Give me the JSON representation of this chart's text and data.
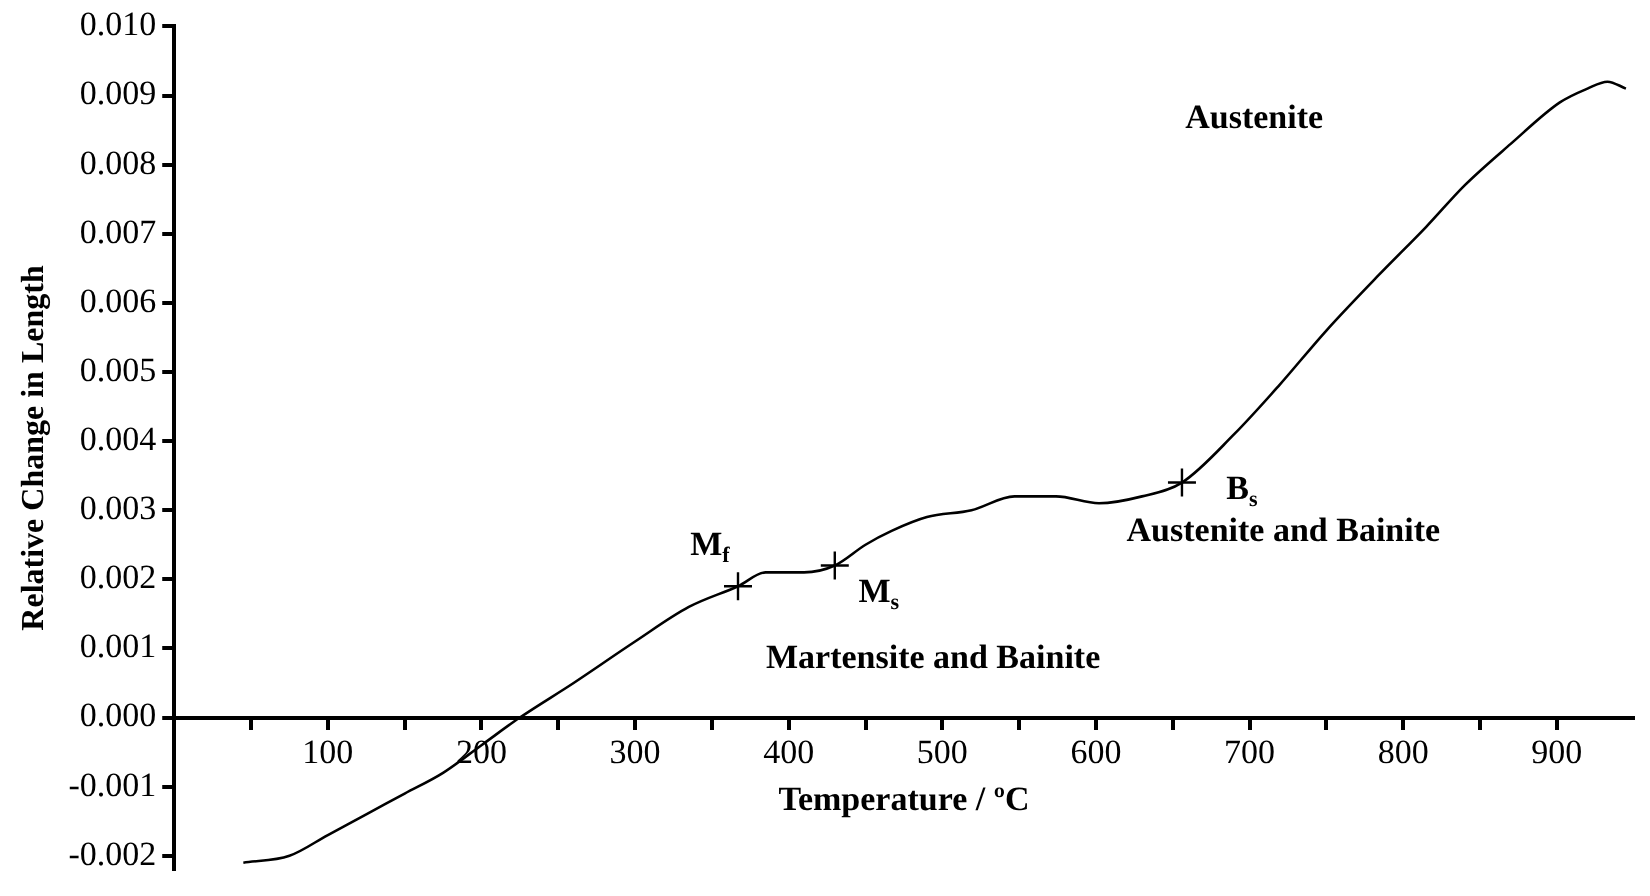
{
  "chart_data": {
    "type": "line",
    "xlabel": "Temperature / ºC",
    "ylabel": "Relative Change in Length",
    "xlim": [
      0,
      950
    ],
    "ylim": [
      -0.0022,
      0.01
    ],
    "xticks": [
      {
        "value": 50,
        "label": null
      },
      100,
      {
        "value": 150,
        "label": null
      },
      200,
      {
        "value": 250,
        "label": null
      },
      300,
      {
        "value": 350,
        "label": null
      },
      400,
      {
        "value": 450,
        "label": null
      },
      500,
      {
        "value": 550,
        "label": null
      },
      600,
      {
        "value": 650,
        "label": null
      },
      700,
      {
        "value": 750,
        "label": null
      },
      800,
      {
        "value": 850,
        "label": null
      },
      900
    ],
    "yticks": [
      {
        "value": -0.002,
        "label": "-0.002"
      },
      {
        "value": -0.001,
        "label": "-0.001"
      },
      {
        "value": 0,
        "label": "0.000"
      },
      {
        "value": 0.001,
        "label": "0.001"
      },
      {
        "value": 0.002,
        "label": "0.002"
      },
      {
        "value": 0.003,
        "label": "0.003"
      },
      {
        "value": 0.004,
        "label": "0.004"
      },
      {
        "value": 0.005,
        "label": "0.005"
      },
      {
        "value": 0.006,
        "label": "0.006"
      },
      {
        "value": 0.007,
        "label": "0.007"
      },
      {
        "value": 0.008,
        "label": "0.008"
      },
      {
        "value": 0.009,
        "label": "0.009"
      },
      {
        "value": 0.01,
        "label": "0.010"
      }
    ],
    "grid": false,
    "legend": false,
    "marker": "none",
    "line_style": "solid",
    "series": [
      {
        "color": "#000000",
        "x": [
          45,
          75,
          100,
          125,
          150,
          175,
          200,
          225,
          260,
          300,
          335,
          367,
          385,
          410,
          430,
          450,
          467,
          490,
          519,
          547,
          574,
          602,
          630,
          656,
          690,
          719,
          750,
          784,
          815,
          840,
          870,
          902,
          920,
          933,
          945
        ],
        "values": [
          -0.0021,
          -0.002,
          -0.0017,
          -0.0014,
          -0.0011,
          -0.0008,
          -0.0004,
          0.0,
          0.0005,
          0.0011,
          0.0016,
          0.0019,
          0.0021,
          0.0021,
          0.0022,
          0.0025,
          0.0027,
          0.0029,
          0.003,
          0.0032,
          0.0032,
          0.0031,
          0.0032,
          0.0034,
          0.0041,
          0.0048,
          0.0056,
          0.0064,
          0.0071,
          0.0077,
          0.0083,
          0.0089,
          0.0091,
          0.0092,
          0.0091
        ]
      },
      {
        "type": "scatter",
        "color": "#000000",
        "marker": "cross",
        "x": [
          367,
          430,
          656
        ],
        "values": [
          0.0019,
          0.0022,
          0.0034
        ]
      }
    ],
    "annotations": [
      {
        "text": "M$_{f}$",
        "x": 367,
        "y": 0.0019
      },
      {
        "text": "M$_{s}$",
        "x": 430,
        "y": 0.0022
      },
      {
        "text": "B$_{s}$",
        "x": 656,
        "y": 0.0034
      },
      "Austenite",
      "Austenite and Bainite",
      "Martensite and Bainite"
    ]
  }
}
